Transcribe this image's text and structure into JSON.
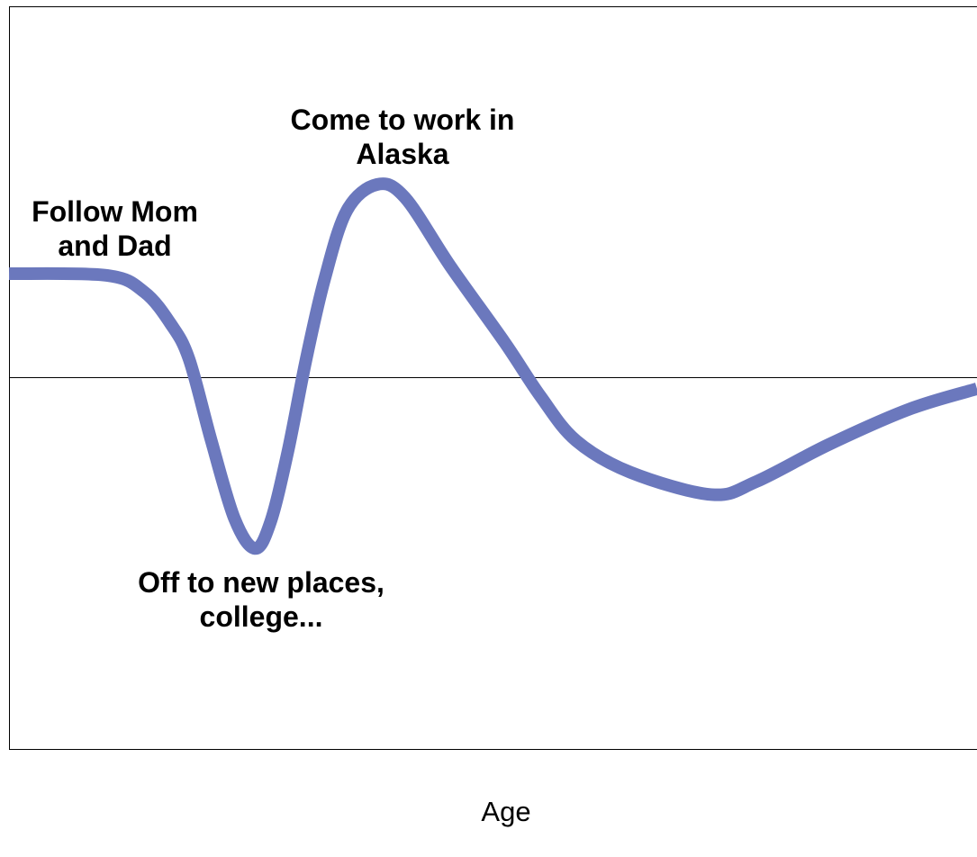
{
  "chart_data": {
    "type": "line",
    "x_label": "Age",
    "annotations": [
      "Follow Mom and Dad",
      "Come to work in Alaska",
      "Off to new places, college..."
    ],
    "x": [
      0,
      10.2,
      14,
      16.7,
      18.6,
      20.9,
      23.3,
      25.4,
      27,
      28.8,
      30.7,
      32.6,
      34.9,
      38,
      40.9,
      45.6,
      51.2,
      54.9,
      58.6,
      64.2,
      72.6,
      77.2,
      84.7,
      93,
      100
    ],
    "series": [
      {
        "color": "#6b78bd",
        "values": [
          0.28,
          0.275,
          0.23,
          0.145,
          0.05,
          -0.17,
          -0.38,
          -0.46,
          -0.39,
          -0.2,
          0.05,
          0.265,
          0.45,
          0.52,
          0.485,
          0.3,
          0.095,
          -0.05,
          -0.17,
          -0.255,
          -0.315,
          -0.28,
          -0.18,
          -0.085,
          -0.03
        ]
      }
    ],
    "xlim": [
      0,
      100
    ],
    "ylim": [
      -1,
      1
    ],
    "grid": false
  }
}
